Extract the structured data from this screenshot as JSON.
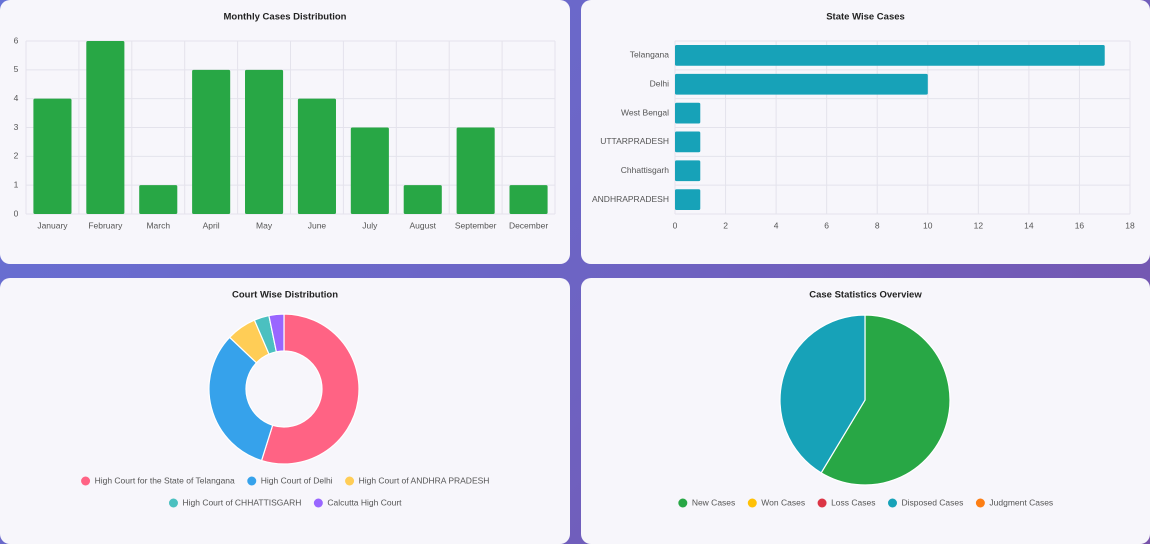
{
  "chart_data": [
    {
      "type": "bar",
      "title": "Monthly Cases Distribution",
      "categories": [
        "January",
        "February",
        "March",
        "April",
        "May",
        "June",
        "July",
        "August",
        "September",
        "December"
      ],
      "values": [
        4,
        6,
        1,
        5,
        5,
        4,
        3,
        1,
        3,
        1
      ],
      "color": "#28a745",
      "ylim": [
        0,
        6
      ],
      "yticks": [
        0,
        1,
        2,
        3,
        4,
        5,
        6
      ],
      "grid": true
    },
    {
      "type": "bar",
      "orientation": "horizontal",
      "title": "State Wise Cases",
      "categories": [
        "Telangana",
        "Delhi",
        "West Bengal",
        "UTTARPRADESH",
        "Chhattisgarh",
        "ANDHRAPRADESH"
      ],
      "values": [
        17,
        10,
        1,
        1,
        1,
        1
      ],
      "color": "#17a2b8",
      "xlim": [
        0,
        18
      ],
      "xticks": [
        0,
        2,
        4,
        6,
        8,
        10,
        12,
        14,
        16,
        18
      ],
      "grid": true
    },
    {
      "type": "doughnut",
      "title": "Court Wise Distribution",
      "categories": [
        "High Court for the State of Telangana",
        "High Court of Delhi",
        "High Court of ANDHRA PRADESH",
        "High Court of CHHATTISGARH",
        "Calcutta High Court"
      ],
      "values": [
        17,
        10,
        2,
        1,
        1
      ],
      "colors": [
        "#ff6384",
        "#36a2eb",
        "#ffcd56",
        "#4bc0c0",
        "#9966ff"
      ],
      "legend": "bottom"
    },
    {
      "type": "pie",
      "title": "Case Statistics Overview",
      "categories": [
        "New Cases",
        "Won Cases",
        "Loss Cases",
        "Disposed Cases",
        "Judgment Cases"
      ],
      "values": [
        17,
        0,
        0,
        12,
        0
      ],
      "colors": [
        "#28a745",
        "#ffc107",
        "#dc3545",
        "#17a2b8",
        "#fd7e14"
      ],
      "legend": "bottom"
    }
  ]
}
